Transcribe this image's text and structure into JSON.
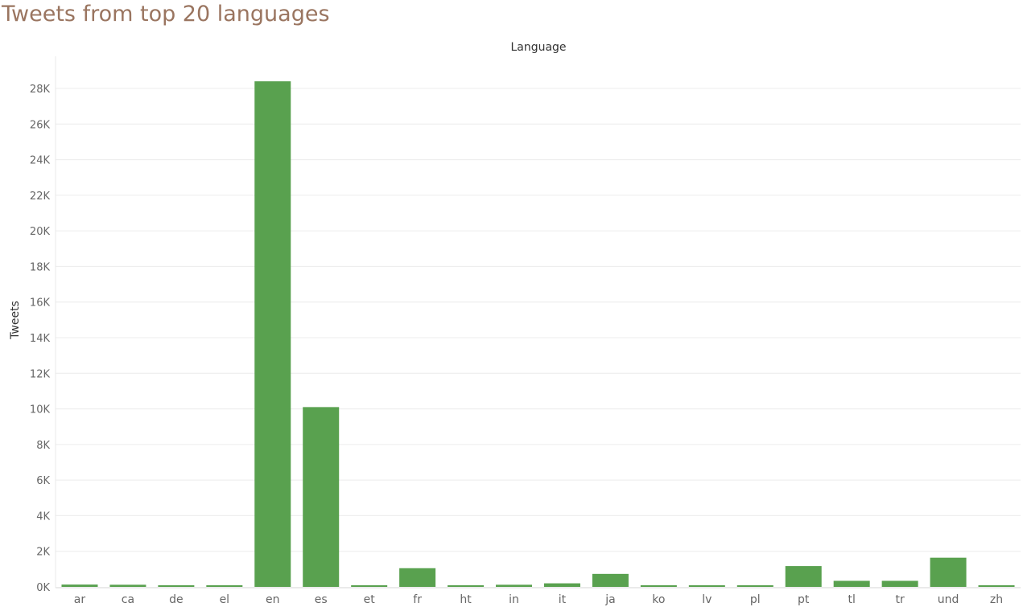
{
  "title": "Tweets from top 20 languages",
  "chart_data": {
    "type": "bar",
    "title": "Tweets from top 20 languages",
    "xlabel": "Language",
    "ylabel": "Tweets",
    "categories": [
      "ar",
      "ca",
      "de",
      "el",
      "en",
      "es",
      "et",
      "fr",
      "ht",
      "in",
      "it",
      "ja",
      "ko",
      "lv",
      "pl",
      "pt",
      "tl",
      "tr",
      "und",
      "zh"
    ],
    "values": [
      130,
      120,
      70,
      70,
      28400,
      10100,
      50,
      1050,
      60,
      120,
      200,
      730,
      60,
      60,
      70,
      1170,
      340,
      340,
      1640,
      40
    ],
    "y_ticks": [
      0,
      2000,
      4000,
      6000,
      8000,
      10000,
      12000,
      14000,
      16000,
      18000,
      20000,
      22000,
      24000,
      26000,
      28000
    ],
    "y_tick_labels": [
      "0K",
      "2K",
      "4K",
      "6K",
      "8K",
      "10K",
      "12K",
      "14K",
      "16K",
      "18K",
      "20K",
      "22K",
      "24K",
      "26K",
      "28K"
    ],
    "ylim": [
      0,
      29000
    ],
    "grid": true,
    "bar_color": "#59a14f",
    "title_color": "#9a7560"
  }
}
